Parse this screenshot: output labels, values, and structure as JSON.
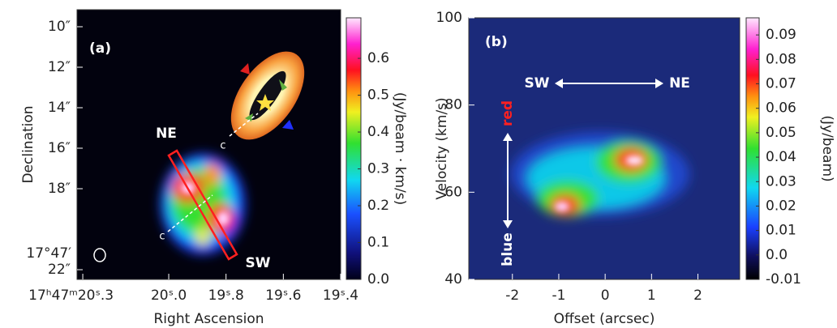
{
  "chart_data": [
    {
      "type": "image",
      "panel_label": "(a)",
      "xlabel": "Right Ascension",
      "ylabel": "Declination",
      "background": "#02020e",
      "xlim": [
        20.32,
        19.4
      ],
      "xticks": [
        {
          "value": 20.3,
          "label": "17ʰ47ᵐ20ˢ.3"
        },
        {
          "value": 20.0,
          "label": "20ˢ.0"
        },
        {
          "value": 19.8,
          "label": "19ˢ.8"
        },
        {
          "value": 19.6,
          "label": "19ˢ.6"
        },
        {
          "value": 19.4,
          "label": "19ˢ.4"
        }
      ],
      "ylim": [
        22.48,
        9.16
      ],
      "yticks": [
        {
          "value": 10,
          "label": "10″"
        },
        {
          "value": 12,
          "label": "12″"
        },
        {
          "value": 14,
          "label": "14″"
        },
        {
          "value": 16,
          "label": "16″"
        },
        {
          "value": 18,
          "label": "18″"
        },
        {
          "value": 22,
          "label": "22″"
        }
      ],
      "dec_prefix": "17°47′",
      "colorbar": {
        "label": "(Jy/beam · km/s)",
        "lim": [
          0,
          0.71
        ],
        "ticks": [
          {
            "value": 0,
            "label": "0.0"
          },
          0.1,
          0.2,
          0.3,
          0.4,
          0.5,
          0.6
        ]
      },
      "annotations": {
        "ne": "NE",
        "sw": "SW",
        "c_disk": "c",
        "c_map": "c"
      }
    },
    {
      "type": "image",
      "panel_label": "(b)",
      "xlabel": "Offset (arcsec)",
      "ylabel": "Velocity (km/s)",
      "background": "#1b2a7a",
      "xlim": [
        -2.94,
        2.9
      ],
      "xticks": [
        -2,
        -1,
        0,
        1,
        2
      ],
      "ylim": [
        40,
        100
      ],
      "yticks": [
        40,
        60,
        80,
        100
      ],
      "colorbar": {
        "label": "(Jy/beam)",
        "lim": [
          -0.01,
          0.097
        ],
        "ticks": [
          -0.01,
          {
            "value": 0,
            "label": "0.0"
          },
          0.01,
          0.02,
          0.03,
          0.04,
          0.05,
          0.06,
          0.07,
          0.08,
          0.09
        ]
      },
      "annotations": {
        "sw": "SW",
        "ne": "NE",
        "red": "red",
        "blue": "blue"
      }
    }
  ]
}
